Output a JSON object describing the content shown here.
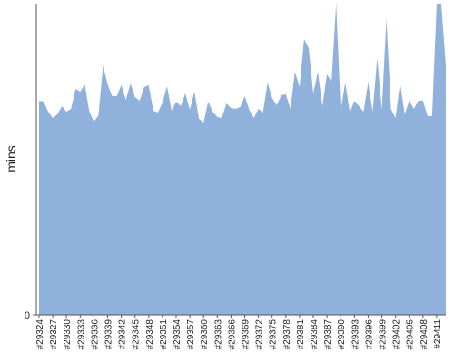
{
  "chart_data": {
    "type": "area",
    "y_label": "mins",
    "categories": [
      "#29324",
      null,
      null,
      "#29327",
      null,
      null,
      "#29330",
      null,
      null,
      "#29333",
      null,
      null,
      "#29336",
      null,
      null,
      "#29339",
      null,
      null,
      "#29342",
      null,
      null,
      "#29345",
      null,
      null,
      "#29348",
      null,
      null,
      "#29351",
      null,
      null,
      "#29354",
      null,
      null,
      "#29357",
      null,
      null,
      "#29360",
      null,
      null,
      "#29363",
      null,
      null,
      "#29366",
      null,
      null,
      "#29369",
      null,
      null,
      "#29372",
      null,
      null,
      "#29375",
      null,
      null,
      "#29378",
      null,
      null,
      "#29381",
      null,
      null,
      "#29384",
      null,
      null,
      "#29387",
      null,
      null,
      "#29390",
      null,
      null,
      "#29393",
      null,
      null,
      "#29396",
      null,
      null,
      "#29399",
      null,
      null,
      "#29402",
      null,
      null,
      "#29405",
      null,
      null,
      "#29408",
      null,
      null,
      "#29411",
      null,
      null
    ],
    "series": [
      {
        "color": "#8fb1dc",
        "values": [
          236,
          235,
          224,
          217,
          221,
          230,
          224,
          227,
          249,
          246,
          254,
          224,
          213,
          220,
          275,
          254,
          241,
          241,
          253,
          237,
          255,
          240,
          236,
          251,
          253,
          225,
          223,
          234,
          252,
          225,
          235,
          230,
          244,
          226,
          246,
          216,
          212,
          235,
          224,
          218,
          217,
          233,
          228,
          227,
          229,
          241,
          226,
          217,
          227,
          223,
          256,
          239,
          231,
          242,
          243,
          227,
          268,
          251,
          304,
          294,
          244,
          268,
          230,
          265,
          257,
          343,
          225,
          256,
          223,
          236,
          230,
          224,
          256,
          224,
          283,
          226,
          326,
          227,
          217,
          256,
          221,
          236,
          227,
          236,
          236,
          219,
          219,
          343,
          343,
          275
        ]
      }
    ],
    "ylim": [
      0,
      343
    ],
    "yticks": [
      0
    ]
  }
}
